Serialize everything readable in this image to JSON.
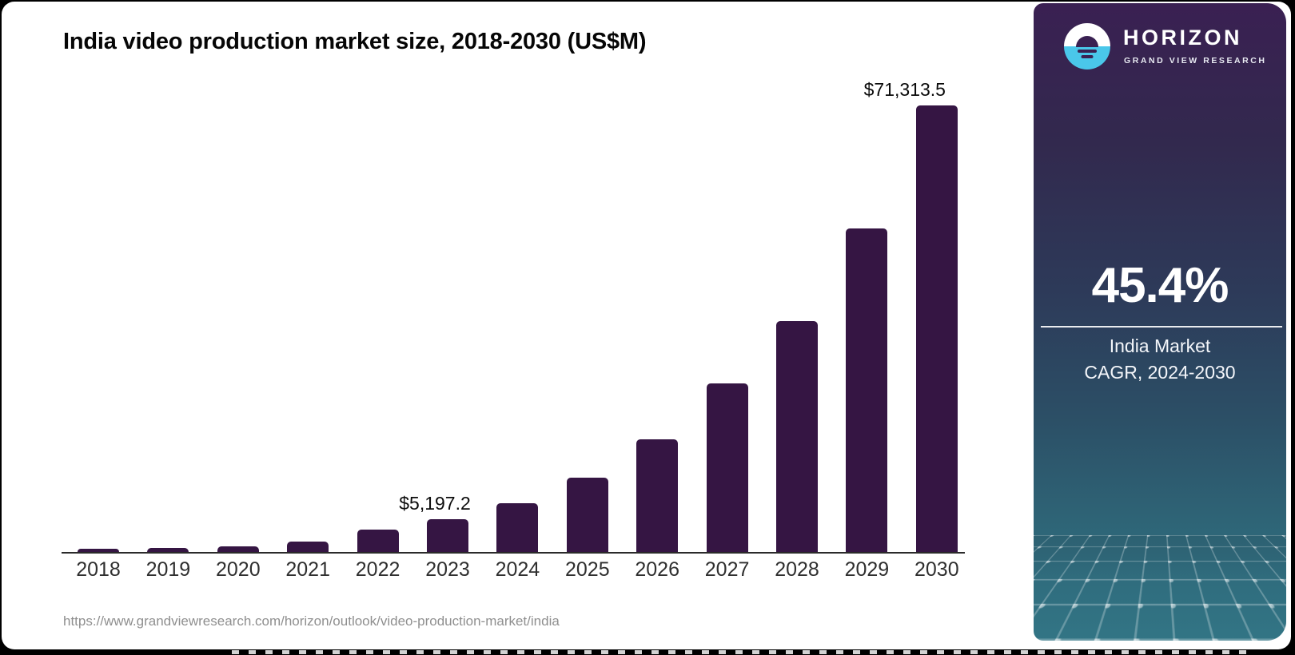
{
  "chart": {
    "title": "India video production market size, 2018-2030 (US$M)"
  },
  "page": {
    "source_url": "https://www.grandviewresearch.com/horizon/outlook/video-production-market/india"
  },
  "chart_data": {
    "type": "bar",
    "title": "India video production market size, 2018-2030 (US$M)",
    "categories": [
      "2018",
      "2019",
      "2020",
      "2021",
      "2022",
      "2023",
      "2024",
      "2025",
      "2026",
      "2027",
      "2028",
      "2029",
      "2030"
    ],
    "values": [
      450,
      680,
      930,
      1720,
      3550,
      5197.2,
      7800,
      11900,
      18000,
      26900,
      36900,
      51700,
      71313.5
    ],
    "labeled_points": {
      "2023": "$5,197.2",
      "2030": "$71,313.5"
    },
    "note": "only 2023 and 2030 carry data labels in the figure; other values estimated from bar heights",
    "xlabel": "",
    "ylabel": "",
    "ylim": [
      0,
      73000
    ],
    "grid": false,
    "legend": false,
    "value_axis_hidden": true,
    "bar_color": "#351543"
  },
  "sidebar": {
    "brand_name": "HORIZON",
    "brand_subtitle": "GRAND VIEW RESEARCH",
    "stat_value": "45.4%",
    "stat_caption_line1": "India Market",
    "stat_caption_line2": "CAGR, 2024-2030"
  },
  "colors": {
    "bar": "#351543",
    "axis": "#2b2b2b",
    "sidebar_top": "#3a2052",
    "sidebar_mid": "#2d3a59",
    "sidebar_bottom": "#327585",
    "logo_blue": "#4ac7ea",
    "source_text": "#8f8f8f"
  }
}
